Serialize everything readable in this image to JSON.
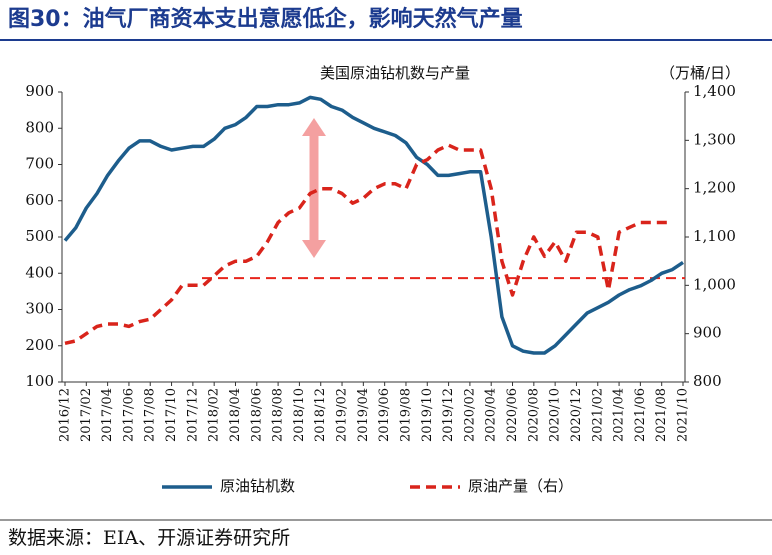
{
  "header": {
    "title": "图30：油气厂商资本支出意愿低企，影响天然气产量"
  },
  "chart_data": {
    "type": "line",
    "title": "美国原油钻机数与产量",
    "y2_label": "（万桶/日）",
    "categories": [
      "2016/12",
      null,
      "2017/02",
      null,
      "2017/04",
      null,
      "2017/06",
      null,
      "2017/08",
      null,
      "2017/10",
      null,
      "2017/12",
      null,
      "2018/02",
      null,
      "2018/04",
      null,
      "2018/06",
      null,
      "2018/08",
      null,
      "2018/10",
      null,
      "2018/12",
      null,
      "2019/02",
      null,
      "2019/04",
      null,
      "2019/06",
      null,
      "2019/08",
      null,
      "2019/10",
      null,
      "2019/12",
      null,
      "2020/02",
      null,
      "2020/04",
      null,
      "2020/06",
      null,
      "2020/08",
      null,
      "2020/10",
      null,
      "2020/12",
      null,
      "2021/02",
      null,
      "2021/04",
      null,
      "2021/06",
      null,
      "2021/08",
      null,
      "2021/10"
    ],
    "series": [
      {
        "name": "原油钻机数",
        "color": "#1d5d8c",
        "axis": "y",
        "values": [
          490,
          525,
          580,
          620,
          670,
          710,
          745,
          765,
          765,
          750,
          740,
          745,
          750,
          750,
          770,
          800,
          810,
          830,
          860,
          860,
          865,
          865,
          870,
          885,
          880,
          860,
          850,
          830,
          815,
          800,
          790,
          780,
          760,
          720,
          700,
          670,
          670,
          675,
          680,
          680,
          500,
          280,
          200,
          185,
          180,
          180,
          200,
          230,
          260,
          290,
          305,
          320,
          340,
          355,
          365,
          380,
          400,
          410,
          430
        ]
      },
      {
        "name": "原油产量（右）",
        "color": "#d9241b",
        "axis": "y2",
        "values": [
          880,
          885,
          900,
          915,
          920,
          920,
          915,
          925,
          930,
          950,
          970,
          1000,
          1000,
          1000,
          1020,
          1040,
          1050,
          1050,
          1060,
          1090,
          1130,
          1150,
          1160,
          1190,
          1200,
          1200,
          1190,
          1170,
          1180,
          1200,
          1210,
          1210,
          1200,
          1250,
          1260,
          1280,
          1290,
          1280,
          1280,
          1280,
          1200,
          1050,
          980,
          1050,
          1100,
          1060,
          1090,
          1050,
          1110,
          1110,
          1100,
          990,
          1110,
          1120,
          1130,
          1130,
          1130,
          1130,
          null
        ]
      }
    ],
    "ylim": [
      100,
      900
    ],
    "yticks": [
      100,
      200,
      300,
      400,
      500,
      600,
      700,
      800,
      900
    ],
    "y2lim": [
      800,
      1400
    ],
    "y2ticks": [
      800,
      900,
      {
        "value": 1000,
        "label": "1,000"
      },
      {
        "value": 1100,
        "label": "1,100"
      },
      {
        "value": 1200,
        "label": "1,200"
      },
      {
        "value": 1300,
        "label": "1,300"
      },
      {
        "value": 1400,
        "label": "1,400"
      }
    ],
    "reference_line": {
      "value": 1015,
      "axis": "y2",
      "color": "#e8251c"
    }
  },
  "source": "数据来源：EIA、开源证券研究所"
}
